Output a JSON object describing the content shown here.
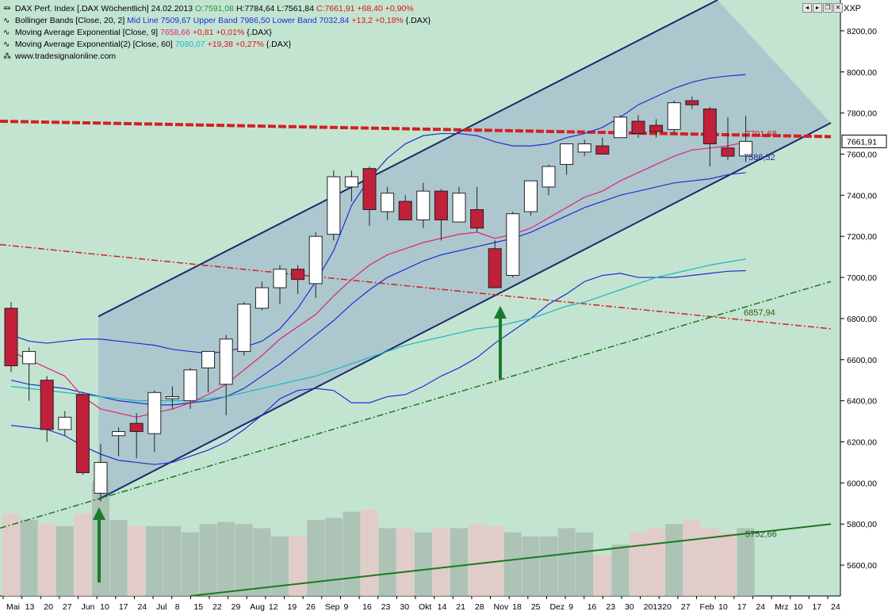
{
  "header": {
    "title_line": "DAX Perf. Index [.DAX  Wöchentlich] 24.02.2013",
    "ohlc_o": "O:7591,08",
    "ohlc_h": "H:7784,64",
    "ohlc_l": "L:7561,84",
    "ohlc_c": "C:7661,91",
    "ohlc_chg": "+68,40 +0,90%",
    "bb_name": "Bollinger Bands [Close, 20, 2]",
    "bb_mid": "Mid Line 7509,67",
    "bb_upper": "Upper Band 7986,50",
    "bb_lower": "Lower Band 7032,84",
    "bb_chg": "+13,2 +0,18%",
    "bb_sym": "{.DAX}",
    "ema9_name": "Moving Average Exponential [Close, 9]",
    "ema9_val": "7658,66",
    "ema9_chg": "+0,81 +0,01%",
    "ema9_sym": "{.DAX}",
    "ema60_name": "Moving Average Exponential(2) [Close, 60]",
    "ema60_val": "7090,07",
    "ema60_chg": "+19,38 +0,27%",
    "ema60_sym": "{.DAX}",
    "website": "www.tradesignalonline.com"
  },
  "toolbar": {
    "scale_label": "XXP"
  },
  "colors": {
    "background": "#c4e4d2",
    "up_fill": "#ffffff",
    "down_fill": "#c0203a",
    "channel_fill": "#9aaeca",
    "bb_line": "#1f2fd0",
    "ema9_line": "#e0207a",
    "ema60_line": "#18b8c0",
    "resistance_line": "#d42020",
    "support_line": "#1a7a1a"
  },
  "chart_data": {
    "type": "candlestick",
    "title": "DAX Perf. Index",
    "ylim": [
      5450,
      8350
    ],
    "y_ticks": [
      5600,
      5800,
      6000,
      6200,
      6400,
      6600,
      6800,
      7000,
      7200,
      7400,
      7600,
      7800,
      8000,
      8200
    ],
    "y_tick_labels": [
      "5600,00",
      "5800,00",
      "6000,00",
      "6200,00",
      "6400,00",
      "6600,00",
      "6800,00",
      "7000,00",
      "7200,00",
      "7400,00",
      "7600,00",
      "7800,00",
      "8000,00",
      "8200,00"
    ],
    "x_tick_labels": [
      "Mai",
      "13",
      "20",
      "27",
      "Jun",
      "10",
      "17",
      "24",
      "Jul",
      "8",
      "15",
      "22",
      "29",
      "Aug",
      "12",
      "19",
      "26",
      "Sep",
      "9",
      "16",
      "23",
      "30",
      "Okt",
      "14",
      "21",
      "28",
      "Nov",
      "18",
      "25",
      "Dez",
      "9",
      "16",
      "23",
      "30",
      "2013",
      "20",
      "27",
      "Feb",
      "10",
      "17",
      "24",
      "Mrz",
      "10",
      "17",
      "24"
    ],
    "candles": [
      {
        "o": 6850,
        "h": 6880,
        "l": 6540,
        "c": 6570
      },
      {
        "o": 6580,
        "h": 6660,
        "l": 6400,
        "c": 6640
      },
      {
        "o": 6500,
        "h": 6520,
        "l": 6200,
        "c": 6260
      },
      {
        "o": 6260,
        "h": 6350,
        "l": 6230,
        "c": 6320
      },
      {
        "o": 6430,
        "h": 6440,
        "l": 6040,
        "c": 6050
      },
      {
        "o": 5950,
        "h": 6190,
        "l": 5910,
        "c": 6100
      },
      {
        "o": 6230,
        "h": 6270,
        "l": 6130,
        "c": 6250
      },
      {
        "o": 6290,
        "h": 6340,
        "l": 6120,
        "c": 6250
      },
      {
        "o": 6240,
        "h": 6450,
        "l": 6150,
        "c": 6440
      },
      {
        "o": 6410,
        "h": 6470,
        "l": 6360,
        "c": 6420
      },
      {
        "o": 6400,
        "h": 6560,
        "l": 6360,
        "c": 6550
      },
      {
        "o": 6560,
        "h": 6640,
        "l": 6440,
        "c": 6640
      },
      {
        "o": 6480,
        "h": 6720,
        "l": 6330,
        "c": 6700
      },
      {
        "o": 6640,
        "h": 6880,
        "l": 6620,
        "c": 6870
      },
      {
        "o": 6850,
        "h": 6980,
        "l": 6840,
        "c": 6950
      },
      {
        "o": 6950,
        "h": 7060,
        "l": 6870,
        "c": 7040
      },
      {
        "o": 7040,
        "h": 7060,
        "l": 6920,
        "c": 6990
      },
      {
        "o": 6970,
        "h": 7220,
        "l": 6900,
        "c": 7200
      },
      {
        "o": 7210,
        "h": 7520,
        "l": 7180,
        "c": 7490
      },
      {
        "o": 7440,
        "h": 7520,
        "l": 7370,
        "c": 7490
      },
      {
        "o": 7530,
        "h": 7540,
        "l": 7250,
        "c": 7330
      },
      {
        "o": 7320,
        "h": 7440,
        "l": 7280,
        "c": 7410
      },
      {
        "o": 7370,
        "h": 7400,
        "l": 7280,
        "c": 7280
      },
      {
        "o": 7280,
        "h": 7460,
        "l": 7240,
        "c": 7420
      },
      {
        "o": 7420,
        "h": 7430,
        "l": 7180,
        "c": 7280
      },
      {
        "o": 7270,
        "h": 7440,
        "l": 7280,
        "c": 7410
      },
      {
        "o": 7330,
        "h": 7440,
        "l": 7220,
        "c": 7240
      },
      {
        "o": 7140,
        "h": 7180,
        "l": 6950,
        "c": 6950
      },
      {
        "o": 7010,
        "h": 7320,
        "l": 7000,
        "c": 7310
      },
      {
        "o": 7320,
        "h": 7470,
        "l": 7300,
        "c": 7470
      },
      {
        "o": 7440,
        "h": 7550,
        "l": 7400,
        "c": 7540
      },
      {
        "o": 7550,
        "h": 7650,
        "l": 7500,
        "c": 7650
      },
      {
        "o": 7610,
        "h": 7670,
        "l": 7590,
        "c": 7650
      },
      {
        "o": 7640,
        "h": 7680,
        "l": 7600,
        "c": 7600
      },
      {
        "o": 7680,
        "h": 7790,
        "l": 7680,
        "c": 7780
      },
      {
        "o": 7760,
        "h": 7790,
        "l": 7680,
        "c": 7700
      },
      {
        "o": 7740,
        "h": 7770,
        "l": 7680,
        "c": 7710
      },
      {
        "o": 7720,
        "h": 7860,
        "l": 7700,
        "c": 7850
      },
      {
        "o": 7860,
        "h": 7880,
        "l": 7820,
        "c": 7840
      },
      {
        "o": 7820,
        "h": 7830,
        "l": 7540,
        "c": 7650
      },
      {
        "o": 7630,
        "h": 7780,
        "l": 7570,
        "c": 7590
      },
      {
        "o": 7591,
        "h": 7785,
        "l": 7562,
        "c": 7662
      }
    ],
    "bollinger": {
      "upper": [
        6720,
        6690,
        6680,
        6690,
        6700,
        6700,
        6690,
        6680,
        6670,
        6650,
        6640,
        6630,
        6640,
        6660,
        6690,
        6750,
        6850,
        6980,
        7130,
        7350,
        7480,
        7580,
        7650,
        7690,
        7700,
        7700,
        7690,
        7660,
        7640,
        7640,
        7650,
        7680,
        7700,
        7730,
        7780,
        7840,
        7880,
        7920,
        7950,
        7970,
        7980,
        7987
      ],
      "mid": [
        6500,
        6480,
        6470,
        6460,
        6440,
        6420,
        6400,
        6390,
        6380,
        6380,
        6390,
        6400,
        6420,
        6460,
        6520,
        6580,
        6650,
        6720,
        6790,
        6870,
        6940,
        7000,
        7040,
        7080,
        7110,
        7130,
        7150,
        7170,
        7190,
        7220,
        7260,
        7300,
        7340,
        7370,
        7400,
        7420,
        7440,
        7460,
        7470,
        7480,
        7500,
        7510
      ],
      "lower": [
        6280,
        6270,
        6260,
        6230,
        6180,
        6140,
        6110,
        6100,
        6090,
        6100,
        6130,
        6160,
        6200,
        6260,
        6330,
        6410,
        6450,
        6460,
        6450,
        6390,
        6390,
        6420,
        6430,
        6470,
        6520,
        6560,
        6610,
        6680,
        6740,
        6800,
        6870,
        6920,
        6980,
        7010,
        7020,
        7000,
        7000,
        7000,
        7010,
        7020,
        7030,
        7033
      ]
    },
    "ema9": [
      6640,
      6600,
      6560,
      6520,
      6420,
      6360,
      6340,
      6320,
      6340,
      6360,
      6390,
      6430,
      6480,
      6550,
      6620,
      6700,
      6760,
      6820,
      6910,
      6990,
      7060,
      7110,
      7140,
      7170,
      7190,
      7210,
      7220,
      7190,
      7210,
      7240,
      7290,
      7340,
      7390,
      7420,
      7470,
      7510,
      7550,
      7590,
      7620,
      7630,
      7640,
      7659
    ],
    "ema60": [
      6470,
      6460,
      6450,
      6440,
      6430,
      6420,
      6410,
      6400,
      6400,
      6400,
      6400,
      6410,
      6420,
      6440,
      6460,
      6480,
      6500,
      6520,
      6550,
      6580,
      6610,
      6640,
      6670,
      6690,
      6710,
      6730,
      6750,
      6760,
      6780,
      6800,
      6830,
      6860,
      6880,
      6910,
      6940,
      6970,
      7000,
      7020,
      7040,
      7060,
      7075,
      7090
    ],
    "volume": [
      5850,
      5820,
      5800,
      5790,
      5850,
      6010,
      5820,
      5790,
      5790,
      5790,
      5760,
      5800,
      5810,
      5800,
      5780,
      5740,
      5740,
      5820,
      5830,
      5860,
      5870,
      5780,
      5780,
      5760,
      5780,
      5780,
      5800,
      5790,
      5760,
      5740,
      5740,
      5780,
      5760,
      5650,
      5700,
      5760,
      5780,
      5800,
      5820,
      5780,
      5760,
      5780
    ],
    "price_labels": {
      "resistance": "7701,68",
      "bb_lower_label": "7586,32",
      "ema_cross_label": "6857,94",
      "support_label": "5752,66",
      "last_price": "7661,91"
    },
    "grid": false,
    "legend_placement": "top-left"
  }
}
